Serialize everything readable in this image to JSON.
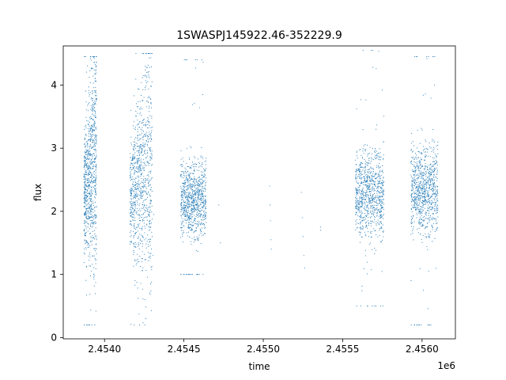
{
  "chart_data": {
    "type": "scatter",
    "title": "1SWASPJ145922.46-352229.9",
    "xlabel": "time",
    "ylabel": "flux",
    "x_offset_label": "1e6",
    "xlim": [
      2453740,
      2456210
    ],
    "ylim": [
      -0.02,
      4.62
    ],
    "x_ticks": [
      {
        "value": 2454000,
        "label": "2.4540"
      },
      {
        "value": 2454500,
        "label": "2.4545"
      },
      {
        "value": 2455000,
        "label": "2.4550"
      },
      {
        "value": 2455500,
        "label": "2.4555"
      },
      {
        "value": 2456000,
        "label": "2.4560"
      }
    ],
    "y_ticks": [
      {
        "value": 0,
        "label": "0"
      },
      {
        "value": 1,
        "label": "1"
      },
      {
        "value": 2,
        "label": "2"
      },
      {
        "value": 3,
        "label": "3"
      },
      {
        "value": 4,
        "label": "4"
      }
    ],
    "grid": false,
    "marker_color": "#1f77b4",
    "seasons": [
      {
        "x_start": 2453870,
        "x_end": 2453950,
        "y_base": 2.3,
        "y_spread": 0.45,
        "y_max": 4.45,
        "y_min": 0.2,
        "rising": true
      },
      {
        "x_start": 2454160,
        "x_end": 2454300,
        "y_base": 2.25,
        "y_spread": 0.45,
        "y_max": 4.5,
        "y_min": 0.2,
        "rising": true
      },
      {
        "x_start": 2454480,
        "x_end": 2454640,
        "y_base": 2.2,
        "y_spread": 0.3,
        "y_max": 4.4,
        "y_min": 1.0,
        "rising": false
      },
      {
        "x_start": 2455580,
        "x_end": 2455760,
        "y_base": 2.3,
        "y_spread": 0.35,
        "y_max": 4.55,
        "y_min": 0.5,
        "rising": false
      },
      {
        "x_start": 2455930,
        "x_end": 2456100,
        "y_base": 2.35,
        "y_spread": 0.35,
        "y_max": 4.45,
        "y_min": 0.2,
        "rising": false
      }
    ],
    "sparse_points": [
      {
        "x": 2454300,
        "y": 1.6
      },
      {
        "x": 2454310,
        "y": 1.95
      },
      {
        "x": 2454305,
        "y": 1.3
      },
      {
        "x": 2454720,
        "y": 2.1
      },
      {
        "x": 2454730,
        "y": 1.5
      },
      {
        "x": 2455040,
        "y": 2.4
      },
      {
        "x": 2455042,
        "y": 2.1
      },
      {
        "x": 2455045,
        "y": 1.85
      },
      {
        "x": 2455048,
        "y": 1.55
      },
      {
        "x": 2455050,
        "y": 1.4
      },
      {
        "x": 2455240,
        "y": 2.3
      },
      {
        "x": 2455245,
        "y": 1.9
      },
      {
        "x": 2455250,
        "y": 1.6
      },
      {
        "x": 2455255,
        "y": 1.3
      },
      {
        "x": 2455260,
        "y": 1.1
      },
      {
        "x": 2455360,
        "y": 1.75
      },
      {
        "x": 2455362,
        "y": 1.7
      }
    ]
  }
}
